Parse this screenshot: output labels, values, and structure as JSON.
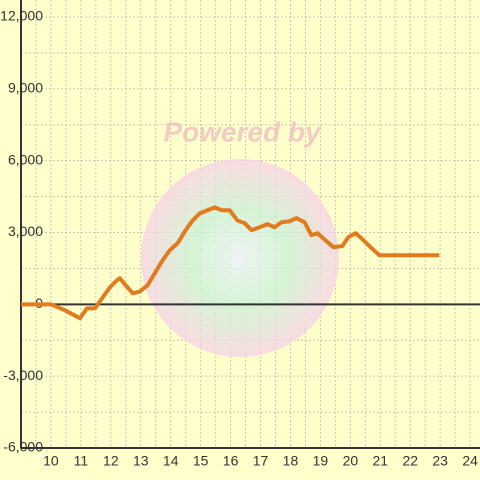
{
  "chart_data": {
    "type": "line",
    "watermark": "Powered by",
    "x": [
      9,
      10,
      10.47,
      10.97,
      11.2,
      11.47,
      11.73,
      11.97,
      12.2,
      12.3,
      12.53,
      12.73,
      12.97,
      13.23,
      13.47,
      13.73,
      13.97,
      14.23,
      14.5,
      14.73,
      14.97,
      15.23,
      15.47,
      15.7,
      15.97,
      16.23,
      16.47,
      16.7,
      16.97,
      17.23,
      17.47,
      17.7,
      17.97,
      18.2,
      18.47,
      18.7,
      18.9,
      19.2,
      19.43,
      19.73,
      19.93,
      20.17,
      20.37,
      20.67,
      20.97,
      22.97
    ],
    "series": [
      {
        "color": "#e07b20",
        "values": [
          0,
          0,
          -250,
          -580,
          -170,
          -170,
          290,
          710,
          1000,
          1090,
          750,
          460,
          540,
          800,
          1300,
          1840,
          2260,
          2550,
          3100,
          3500,
          3800,
          3930,
          4050,
          3930,
          3930,
          3500,
          3390,
          3100,
          3220,
          3350,
          3220,
          3430,
          3470,
          3600,
          3430,
          2890,
          2970,
          2640,
          2390,
          2430,
          2800,
          2970,
          2760,
          2390,
          2050,
          2050
        ]
      }
    ],
    "xlim": [
      9,
      24.33
    ],
    "xticks": [
      10,
      11,
      12,
      13,
      14,
      15,
      16,
      17,
      18,
      19,
      20,
      21,
      22,
      23,
      24
    ],
    "ylim": [
      -6000,
      12000
    ],
    "yticks": [
      {
        "value": -6000,
        "label": "-6,000"
      },
      {
        "value": -3000,
        "label": "-3,000"
      },
      0,
      {
        "value": 3000,
        "label": "3,000"
      },
      {
        "value": 6000,
        "label": "6,000"
      },
      {
        "value": 9000,
        "label": "9,000"
      },
      {
        "value": 12000,
        "label": "12,000"
      }
    ],
    "grid": true
  }
}
